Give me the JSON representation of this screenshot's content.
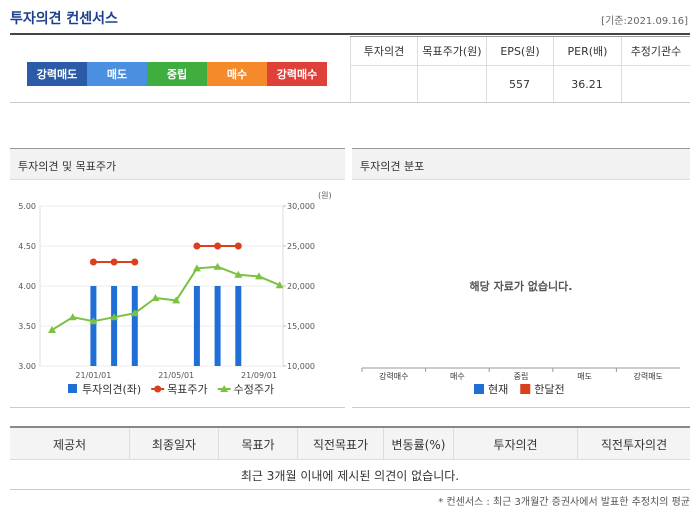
{
  "header": {
    "title": "투자의견 컨센서스",
    "date": "[기준:2021.09.16]"
  },
  "scale": {
    "labels": [
      "강력매도",
      "매도",
      "중립",
      "매수",
      "강력매수"
    ],
    "colors": [
      "#2b5ba8",
      "#4a8fe0",
      "#3fae3f",
      "#f58a2a",
      "#e0403a"
    ]
  },
  "summary_table": {
    "columns": [
      "투자의견",
      "목표주가(원)",
      "EPS(원)",
      "PER(배)",
      "추정기관수"
    ],
    "eps": 557,
    "per": 36.21
  },
  "investment_chart": {
    "type": "combo",
    "title": "투자의견 및 목표주가",
    "y2_unit": "(원)",
    "categories": [
      null,
      null,
      "21/01/01",
      null,
      null,
      null,
      "21/05/01",
      null,
      null,
      null,
      "21/09/01",
      null
    ],
    "ylim": [
      3,
      5
    ],
    "yticks": [
      {
        "value": 3,
        "label": "3.00"
      },
      {
        "value": 3.5,
        "label": "3.50"
      },
      {
        "value": 4,
        "label": "4.00"
      },
      {
        "value": 4.5,
        "label": "4.50"
      },
      {
        "value": 5,
        "label": "5.00"
      }
    ],
    "y2lim": [
      10000,
      30000
    ],
    "y2ticks": [
      {
        "value": 10000,
        "label": "10,000"
      },
      {
        "value": 15000,
        "label": "15,000"
      },
      {
        "value": 20000,
        "label": "20,000"
      },
      {
        "value": 25000,
        "label": "25,000"
      },
      {
        "value": 30000,
        "label": "30,000"
      }
    ],
    "series": [
      {
        "name": "투자의견(좌)",
        "kind": "bar",
        "color": "#1f6fd6",
        "values": [
          null,
          null,
          4,
          4,
          4,
          null,
          null,
          4,
          4,
          4,
          null,
          null
        ]
      },
      {
        "name": "목표주가",
        "kind": "line",
        "marker": "circle",
        "axis": "y2",
        "color": "#d9401e",
        "values": [
          null,
          null,
          23000,
          23000,
          23000,
          null,
          null,
          25000,
          25000,
          25000,
          null,
          null
        ]
      },
      {
        "name": "수정주가",
        "kind": "line",
        "marker": "triangle",
        "axis": "y2",
        "color": "#7cc242",
        "values": [
          14500,
          16100,
          15600,
          16100,
          16600,
          18500,
          18200,
          22200,
          22400,
          21400,
          21200,
          20100
        ]
      }
    ]
  },
  "distribution_chart": {
    "type": "bar",
    "title": "투자의견 분포",
    "categories": [
      "강력매수",
      "매수",
      "중립",
      "매도",
      "강력매도"
    ],
    "message": "해당 자료가 없습니다.",
    "series": [
      {
        "name": "현재",
        "color": "#1f6fd6"
      },
      {
        "name": "한달전",
        "color": "#d9401e"
      }
    ]
  },
  "detail_table": {
    "columns": [
      "제공처",
      "최종일자",
      "목표가",
      "직전목표가",
      "변동률(%)",
      "투자의견",
      "직전투자의견"
    ],
    "message": "최근 3개월 이내에 제시된 의견이 없습니다."
  },
  "footnote": "* 컨센서스 : 최근 3개월간 증권사에서 발표한 추정치의 평균"
}
